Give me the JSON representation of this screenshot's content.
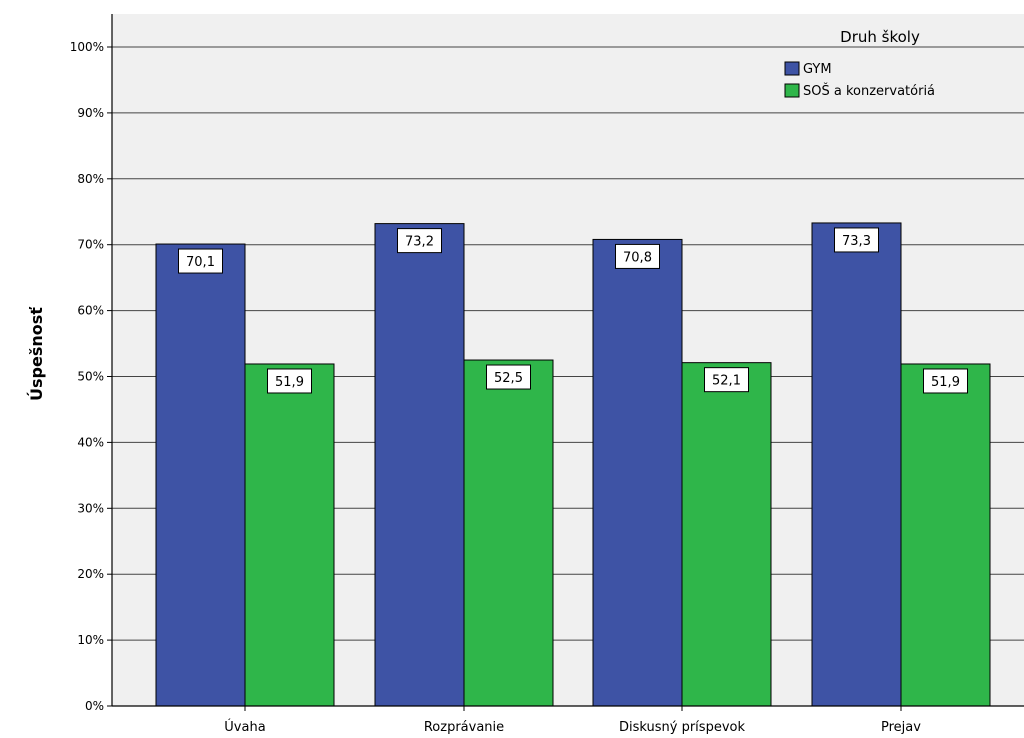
{
  "chart_data": {
    "type": "bar",
    "title": "",
    "xlabel": "",
    "ylabel": "Úspešnosť",
    "ylim": [
      0,
      100
    ],
    "y_ticks": [
      "0%",
      "10%",
      "20%",
      "30%",
      "40%",
      "50%",
      "60%",
      "70%",
      "80%",
      "90%",
      "100%"
    ],
    "grid": true,
    "legend_position": "top-right",
    "legend_title": "Druh školy",
    "categories": [
      "Úvaha",
      "Rozprávanie",
      "Diskusný príspevok",
      "Prejav"
    ],
    "series": [
      {
        "name": "GYM",
        "color": "#3e53a5",
        "values": [
          70.1,
          73.2,
          70.8,
          73.3
        ],
        "labels": [
          "70,1",
          "73,2",
          "70,8",
          "73,3"
        ]
      },
      {
        "name": "SOŠ a konzervatóriá",
        "color": "#2fb64a",
        "values": [
          51.9,
          52.5,
          52.1,
          51.9
        ],
        "labels": [
          "51,9",
          "52,5",
          "52,1",
          "51,9"
        ]
      }
    ],
    "background_color": "#f0f0f0"
  }
}
